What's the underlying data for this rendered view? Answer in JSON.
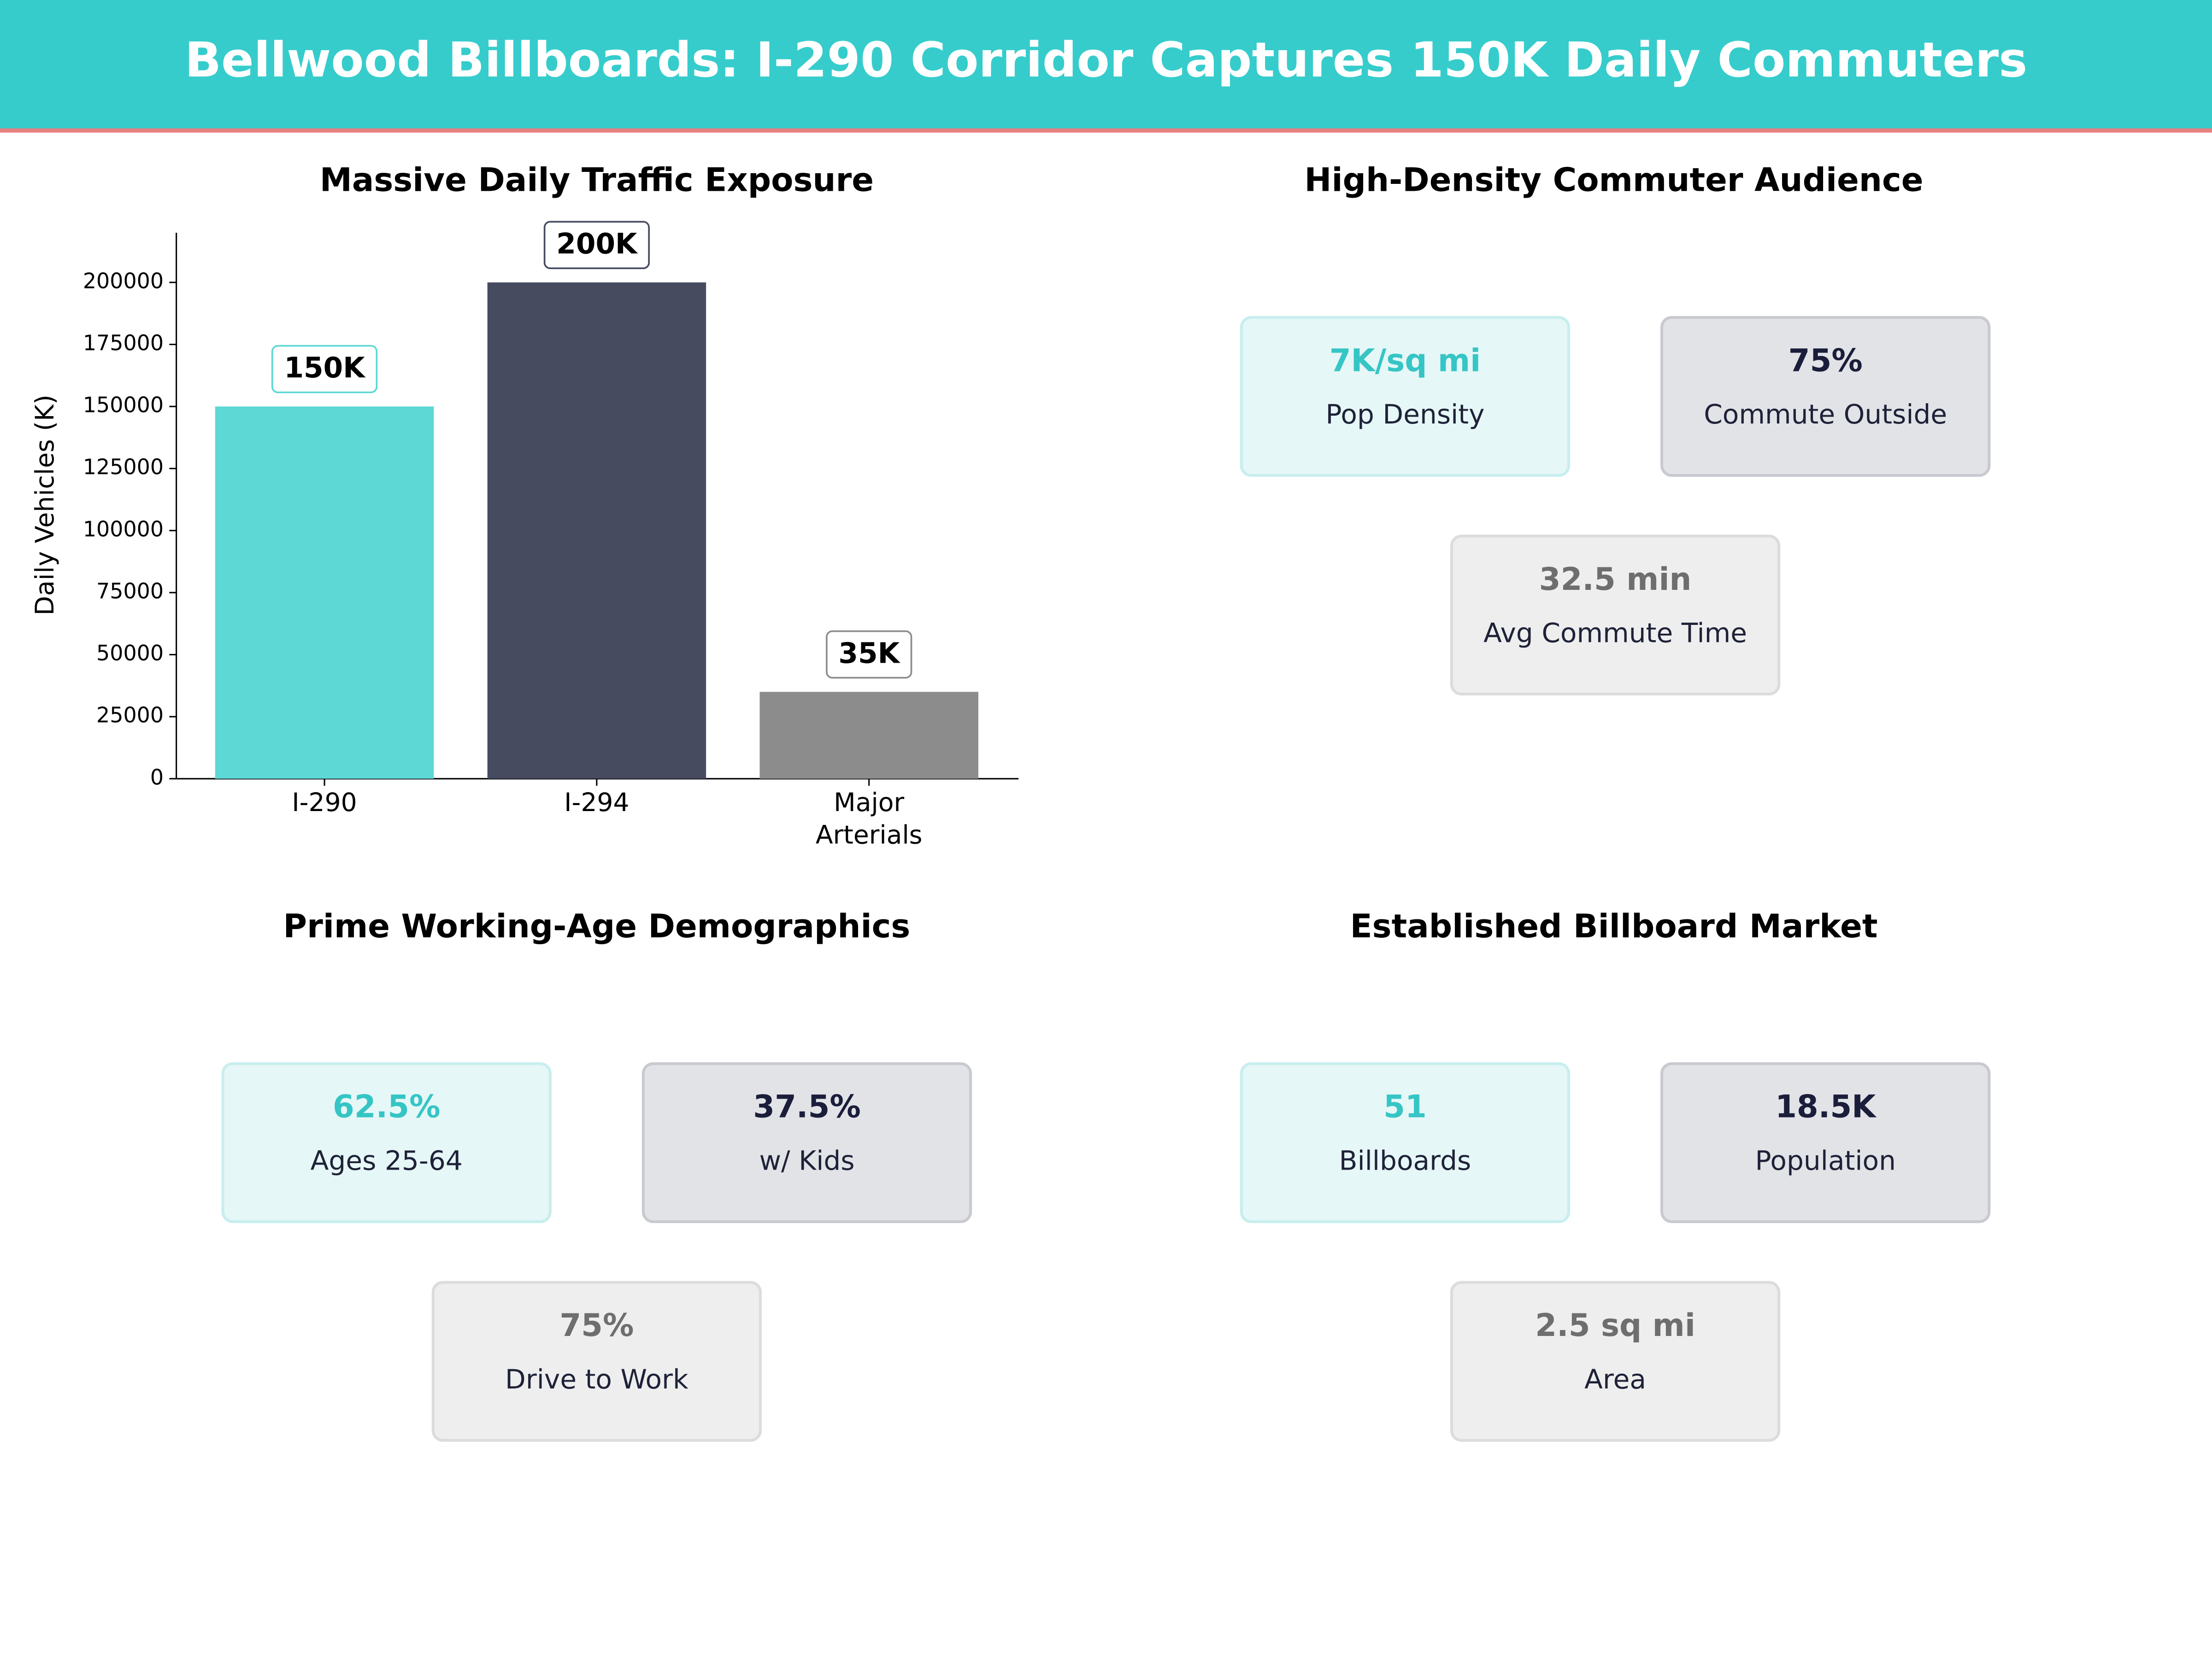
{
  "title": "Bellwood Billboards: I-290 Corridor Captures 150K Daily Commuters",
  "chart_data": {
    "type": "bar",
    "title": "Massive Daily Traffic Exposure",
    "y_label": "Daily Vehicles (K)",
    "categories": [
      "I-290",
      "I-294",
      "Major Arterials"
    ],
    "values": [
      150000,
      200000,
      35000
    ],
    "value_labels": [
      "150K",
      "200K",
      "35K"
    ],
    "colors": [
      "#5dd8d5",
      "#464b60",
      "#8c8c8c"
    ],
    "ylim": [
      0,
      220000
    ],
    "yticks": [
      0,
      25000,
      50000,
      75000,
      100000,
      125000,
      150000,
      175000,
      200000
    ],
    "grid": false
  },
  "panels": [
    {
      "title": "High-Density Commuter Audience",
      "cards": [
        {
          "value": "7K/sq mi",
          "label": "Pop Density"
        },
        {
          "value": "75%",
          "label": "Commute Outside"
        },
        {
          "value": "32.5 min",
          "label": "Avg Commute Time"
        }
      ]
    },
    {
      "title": "Prime Working-Age Demographics",
      "cards": [
        {
          "value": "62.5%",
          "label": "Ages 25-64"
        },
        {
          "value": "37.5%",
          "label": "w/ Kids"
        },
        {
          "value": "75%",
          "label": "Drive to Work"
        }
      ]
    },
    {
      "title": "Established Billboard Market",
      "cards": [
        {
          "value": "51",
          "label": "Billboards"
        },
        {
          "value": "18.5K",
          "label": "Population"
        },
        {
          "value": "2.5 sq mi",
          "label": "Area"
        }
      ]
    }
  ]
}
